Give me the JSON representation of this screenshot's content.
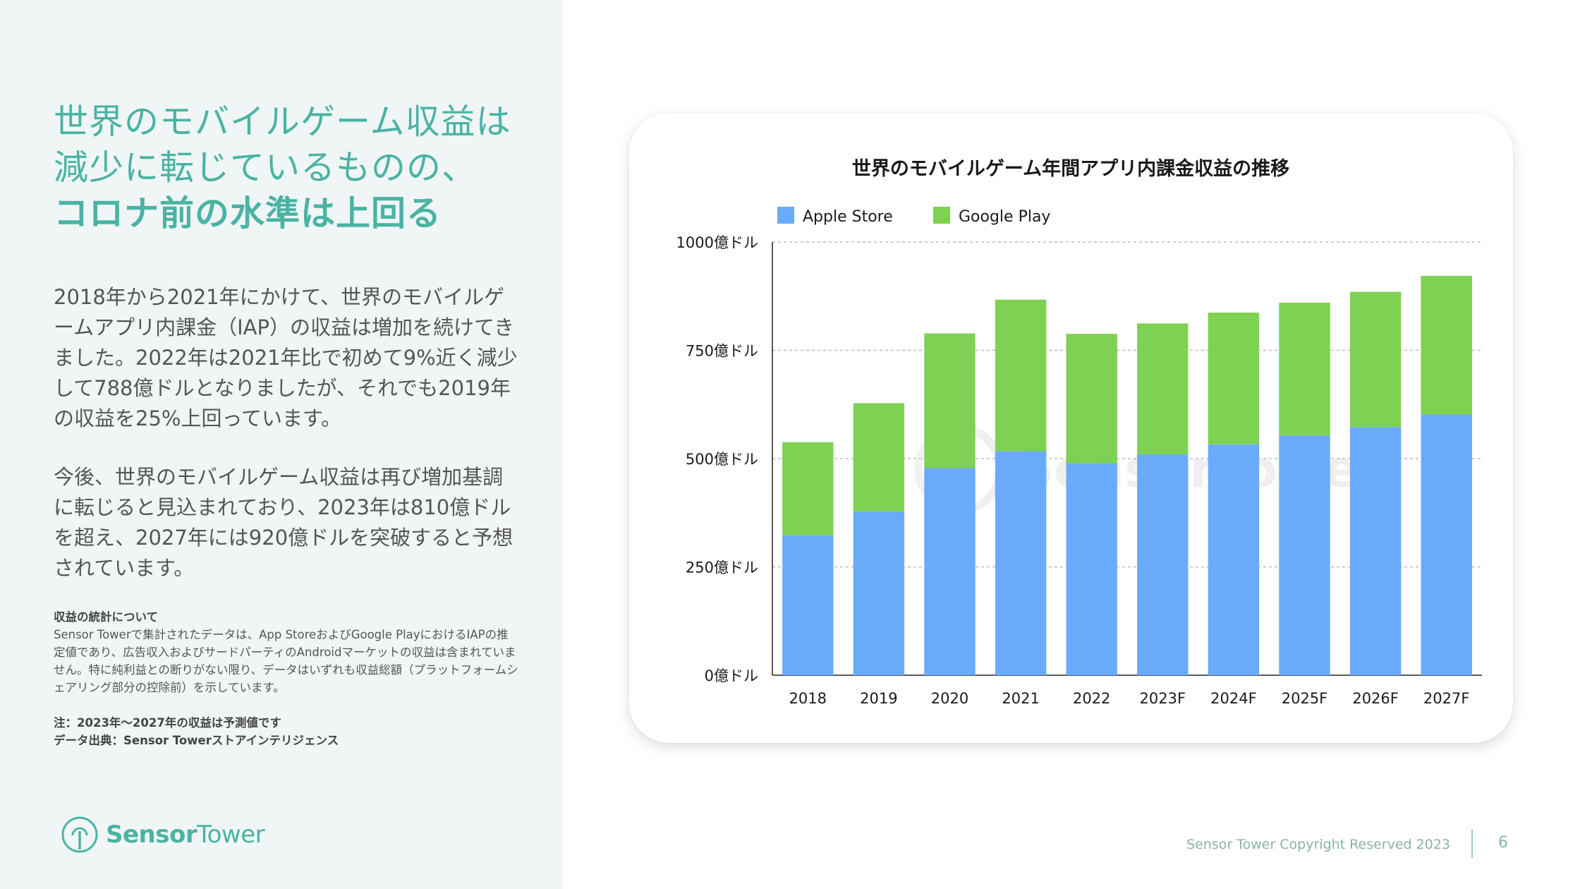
{
  "headline": {
    "line1": "世界のモバイルゲーム収益は",
    "line2": "減少に転じているものの、",
    "line3": "コロナ前の水準は上回る"
  },
  "paragraphs": {
    "p1": "2018年から2021年にかけて、世界のモバイルゲームアプリ内課金（IAP）の収益は増加を続けてきました。2022年は2021年比で初めて9%近く減少して788億ドルとなりましたが、それでも2019年の収益を25%上回っています。",
    "p2": "今後、世界のモバイルゲーム収益は再び増加基調に転じると見込まれており、2023年は810億ドルを超え、2027年には920億ドルを突破すると予想されています。"
  },
  "notes": {
    "title": "収益の統計について",
    "body": "Sensor Towerで集計されたデータは、App StoreおよびGoogle PlayにおけるIAPの推定値であり、広告収入およびサードパーティのAndroidマーケットの収益は含まれていません。特に純利益との断りがない限り、データはいずれも収益総額（プラットフォームシェアリング部分の控除前）を示しています。",
    "forecast_note": "注：2023年〜2027年の収益は予測値です",
    "source": "データ出典：Sensor Towerストアインテリジェンス"
  },
  "logo": {
    "part1": "Sensor",
    "part2": "Tower",
    "icon": "sensor-tower-logo-icon"
  },
  "footer": {
    "copyright": "Sensor Tower Copyright Reserved 2023",
    "page_number": "6"
  },
  "watermark": {
    "text": "SensorTower"
  },
  "colors": {
    "accent": "#4ab3a4",
    "apple": "#6aaafb",
    "google": "#7fd153",
    "panel": "#f0f6f5"
  },
  "chart_data": {
    "type": "bar",
    "stacked": true,
    "title": "世界のモバイルゲーム年間アプリ内課金収益の推移",
    "categories": [
      "2018",
      "2019",
      "2020",
      "2021",
      "2022",
      "2023F",
      "2024F",
      "2025F",
      "2026F",
      "2027F"
    ],
    "series": [
      {
        "name": "Apple Store",
        "color": "#6aaafb",
        "values": [
          323,
          378,
          478,
          517,
          490,
          510,
          533,
          553,
          573,
          602
        ]
      },
      {
        "name": "Google Play",
        "color": "#7fd153",
        "values": [
          215,
          250,
          311,
          350,
          298,
          302,
          304,
          307,
          312,
          320
        ]
      }
    ],
    "yticks": [
      0,
      250,
      500,
      750,
      1000
    ],
    "ytick_labels": [
      "0億ドル",
      "250億ドル",
      "500億ドル",
      "750億ドル",
      "1000億ドル"
    ],
    "ylim": [
      0,
      1000
    ],
    "grid": true,
    "legend": "top-left"
  }
}
